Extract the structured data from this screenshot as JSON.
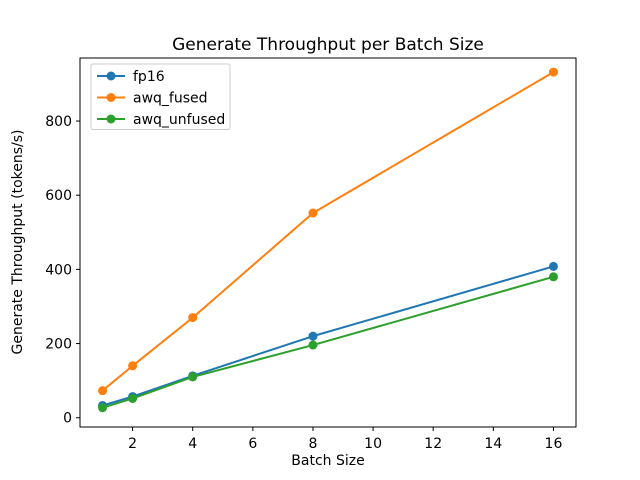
{
  "figure": {
    "background": "#ffffff",
    "axis_color": "#000000",
    "legend_border_color": "#cccccc",
    "legend_background": "rgba(255,255,255,0.8)"
  },
  "chart_data": {
    "type": "line",
    "title": "Generate Throughput per Batch Size",
    "xlabel": "Batch Size",
    "ylabel": "Generate Throughput (tokens/s)",
    "x": [
      1,
      2,
      4,
      8,
      16
    ],
    "series": [
      {
        "name": "fp16",
        "color": "#1f77b4",
        "values": [
          33,
          57,
          113,
          220,
          408
        ]
      },
      {
        "name": "awq_fused",
        "color": "#ff7f0e",
        "values": [
          73,
          140,
          270,
          552,
          932
        ]
      },
      {
        "name": "awq_unfused",
        "color": "#2ca02c",
        "values": [
          27,
          52,
          110,
          196,
          380
        ]
      }
    ],
    "xticks": [
      2,
      4,
      6,
      8,
      10,
      12,
      14,
      16
    ],
    "yticks": [
      0,
      200,
      400,
      600,
      800
    ],
    "xlim": [
      0.25,
      16.75
    ],
    "ylim": [
      -25,
      970
    ],
    "grid": false,
    "legend_position": "upper left",
    "marker": "o"
  }
}
